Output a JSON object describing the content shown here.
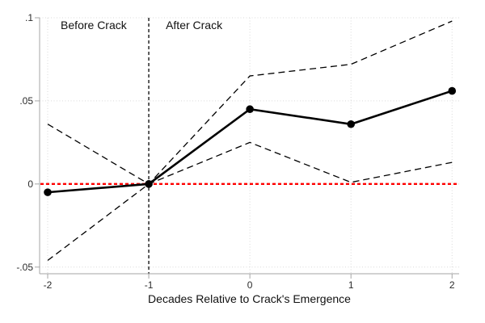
{
  "chart_data": {
    "type": "line",
    "title": "",
    "xlabel": "Decades Relative to Crack's Emergence",
    "ylabel": "",
    "x": [
      -2,
      -1,
      0,
      1,
      2
    ],
    "series": [
      {
        "name": "point-estimate",
        "style": "solid-with-markers",
        "color": "#000000",
        "values": [
          -0.005,
          0,
          0.045,
          0.036,
          0.056
        ]
      },
      {
        "name": "upper-confidence-band",
        "style": "dashed",
        "color": "#000000",
        "values": [
          0.036,
          0,
          0.065,
          0.072,
          0.098
        ]
      },
      {
        "name": "lower-confidence-band",
        "style": "dashed",
        "color": "#000000",
        "values": [
          -0.046,
          0,
          0.025,
          0.001,
          0.013
        ]
      }
    ],
    "xlim": [
      -2.08,
      2.07
    ],
    "ylim": [
      -0.054,
      0.1
    ],
    "x_ticks": [
      {
        "value": -2,
        "label": "-2"
      },
      {
        "value": -1,
        "label": "-1"
      },
      {
        "value": 0,
        "label": "0"
      },
      {
        "value": 1,
        "label": "1"
      },
      {
        "value": 2,
        "label": "2"
      }
    ],
    "y_ticks": [
      {
        "value": -0.05,
        "label": "-.05"
      },
      {
        "value": 0,
        "label": "0"
      },
      {
        "value": 0.05,
        "label": ".05"
      },
      {
        "value": 0.1,
        "label": ".1"
      }
    ],
    "reference_lines": {
      "zero_line": {
        "axis": "y",
        "value": 0,
        "color": "#ff0000",
        "style": "dashed"
      },
      "event_line": {
        "axis": "x",
        "value": -1,
        "color": "#5a5a5a",
        "style": "dashed"
      }
    },
    "annotations": [
      {
        "text": "Before Crack",
        "x": -1.545,
        "y": 0.0955
      },
      {
        "text": "After Crack",
        "x": -0.552,
        "y": 0.0955
      }
    ],
    "grid": "dotted, both axes",
    "legend": "none",
    "colors": {
      "grid": "#d9d9d9",
      "axis": "#a6a6a6",
      "tick_text": "#2b2b2b",
      "line": "#000000",
      "marker": "#000000",
      "zero_line": "#ff0000",
      "event_line": "#5a5a5a"
    }
  }
}
